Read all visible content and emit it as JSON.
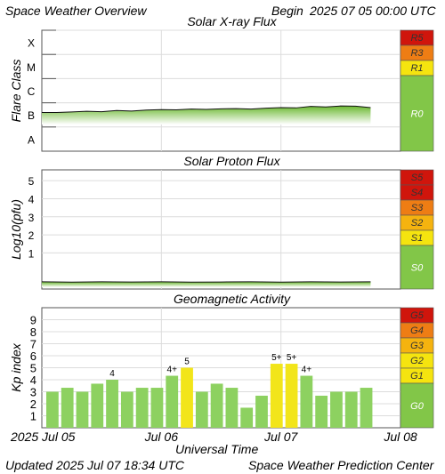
{
  "header": {
    "title": "Space Weather Overview",
    "begin_label": "Begin",
    "begin_value": "2025 07 05 00:00 UTC"
  },
  "footer": {
    "updated_label": "Updated",
    "updated_value": "2025 Jul 07 18:34 UTC",
    "credit": "Space Weather Prediction Center"
  },
  "colors": {
    "plot_green": "#7cc13c",
    "bar_green": "#8dd160",
    "bar_yellow": "#f2e51a",
    "scale_red": "#d0150c",
    "scale_orange": "#ee7d14",
    "scale_amber": "#f5b30f",
    "scale_yellow": "#f5e40f",
    "scale_green": "#82c648"
  },
  "chart_data": [
    {
      "name": "xray",
      "type": "area",
      "title": "Solar X-ray Flux",
      "ylabel": "Flare Class",
      "yticks": [
        "A",
        "B",
        "C",
        "M",
        "X"
      ],
      "x": [
        0,
        0.125,
        0.25,
        0.375,
        0.5,
        0.625,
        0.75,
        0.875,
        1.0,
        1.125,
        1.25,
        1.375,
        1.5,
        1.625,
        1.75,
        1.875,
        2.0,
        2.125,
        2.25,
        2.375,
        2.5,
        2.625,
        2.75
      ],
      "values": [
        1.6,
        1.6,
        1.62,
        1.65,
        1.63,
        1.68,
        1.66,
        1.7,
        1.72,
        1.71,
        1.74,
        1.73,
        1.75,
        1.76,
        1.74,
        1.78,
        1.8,
        1.79,
        1.85,
        1.83,
        1.87,
        1.86,
        1.8
      ],
      "ylim": [
        0,
        5
      ],
      "xlim": [
        0,
        3
      ],
      "scale": [
        {
          "label": "R5",
          "color": "#d0150c"
        },
        {
          "label": "R3",
          "color": "#ee7d14"
        },
        {
          "label": "R1",
          "color": "#f5e40f"
        },
        {
          "label": "R0",
          "color": "#82c648"
        }
      ]
    },
    {
      "name": "proton",
      "type": "area",
      "title": "Solar Proton Flux",
      "ylabel": "Log10(pfu)",
      "yticks": [
        "1",
        "2",
        "3",
        "4",
        "5"
      ],
      "x": [
        0,
        0.25,
        0.5,
        0.75,
        1.0,
        1.25,
        1.5,
        1.75,
        2.0,
        2.25,
        2.5,
        2.75
      ],
      "values": [
        -0.6,
        -0.62,
        -0.6,
        -0.61,
        -0.6,
        -0.62,
        -0.61,
        -0.6,
        -0.62,
        -0.6,
        -0.61,
        -0.6
      ],
      "ylim": [
        -1,
        5.6
      ],
      "xlim": [
        0,
        3
      ],
      "scale": [
        {
          "label": "S5",
          "color": "#d0150c"
        },
        {
          "label": "S4",
          "color": "#d0150c"
        },
        {
          "label": "S3",
          "color": "#ee7d14"
        },
        {
          "label": "S2",
          "color": "#f5b30f"
        },
        {
          "label": "S1",
          "color": "#f5e40f"
        },
        {
          "label": "S0",
          "color": "#82c648"
        }
      ]
    },
    {
      "name": "kp",
      "type": "bar",
      "title": "Geomagnetic Activity",
      "ylabel": "Kp index",
      "yticks": [
        "1",
        "2",
        "3",
        "4",
        "5",
        "6",
        "7",
        "8",
        "9"
      ],
      "values": [
        3,
        3.33,
        3,
        3.67,
        4,
        3,
        3.33,
        3.33,
        4.33,
        5,
        3,
        3.67,
        3.33,
        1.67,
        2.67,
        5.33,
        5.33,
        4.33,
        2.67,
        3,
        3,
        3.33
      ],
      "labels": [
        "",
        "",
        "",
        "",
        "4",
        "",
        "",
        "",
        "4+",
        "5",
        "",
        "",
        "",
        "",
        "",
        "5+",
        "5+",
        "4+",
        "",
        "",
        "",
        ""
      ],
      "highlight": [
        false,
        false,
        false,
        false,
        false,
        false,
        false,
        false,
        false,
        true,
        false,
        false,
        false,
        false,
        false,
        true,
        true,
        false,
        false,
        false,
        false,
        false
      ],
      "ylim": [
        0,
        10
      ],
      "xlim": [
        0,
        3
      ],
      "scale": [
        {
          "label": "G5",
          "color": "#d0150c"
        },
        {
          "label": "G4",
          "color": "#ee7d14"
        },
        {
          "label": "G3",
          "color": "#f5b30f"
        },
        {
          "label": "G2",
          "color": "#f5e40f"
        },
        {
          "label": "G1",
          "color": "#f5e40f"
        },
        {
          "label": "G0",
          "color": "#82c648"
        }
      ]
    }
  ],
  "xaxis": {
    "label": "Universal Time",
    "ticks": [
      "2025  Jul 05",
      "Jul 06",
      "Jul 07",
      "Jul 08"
    ]
  }
}
